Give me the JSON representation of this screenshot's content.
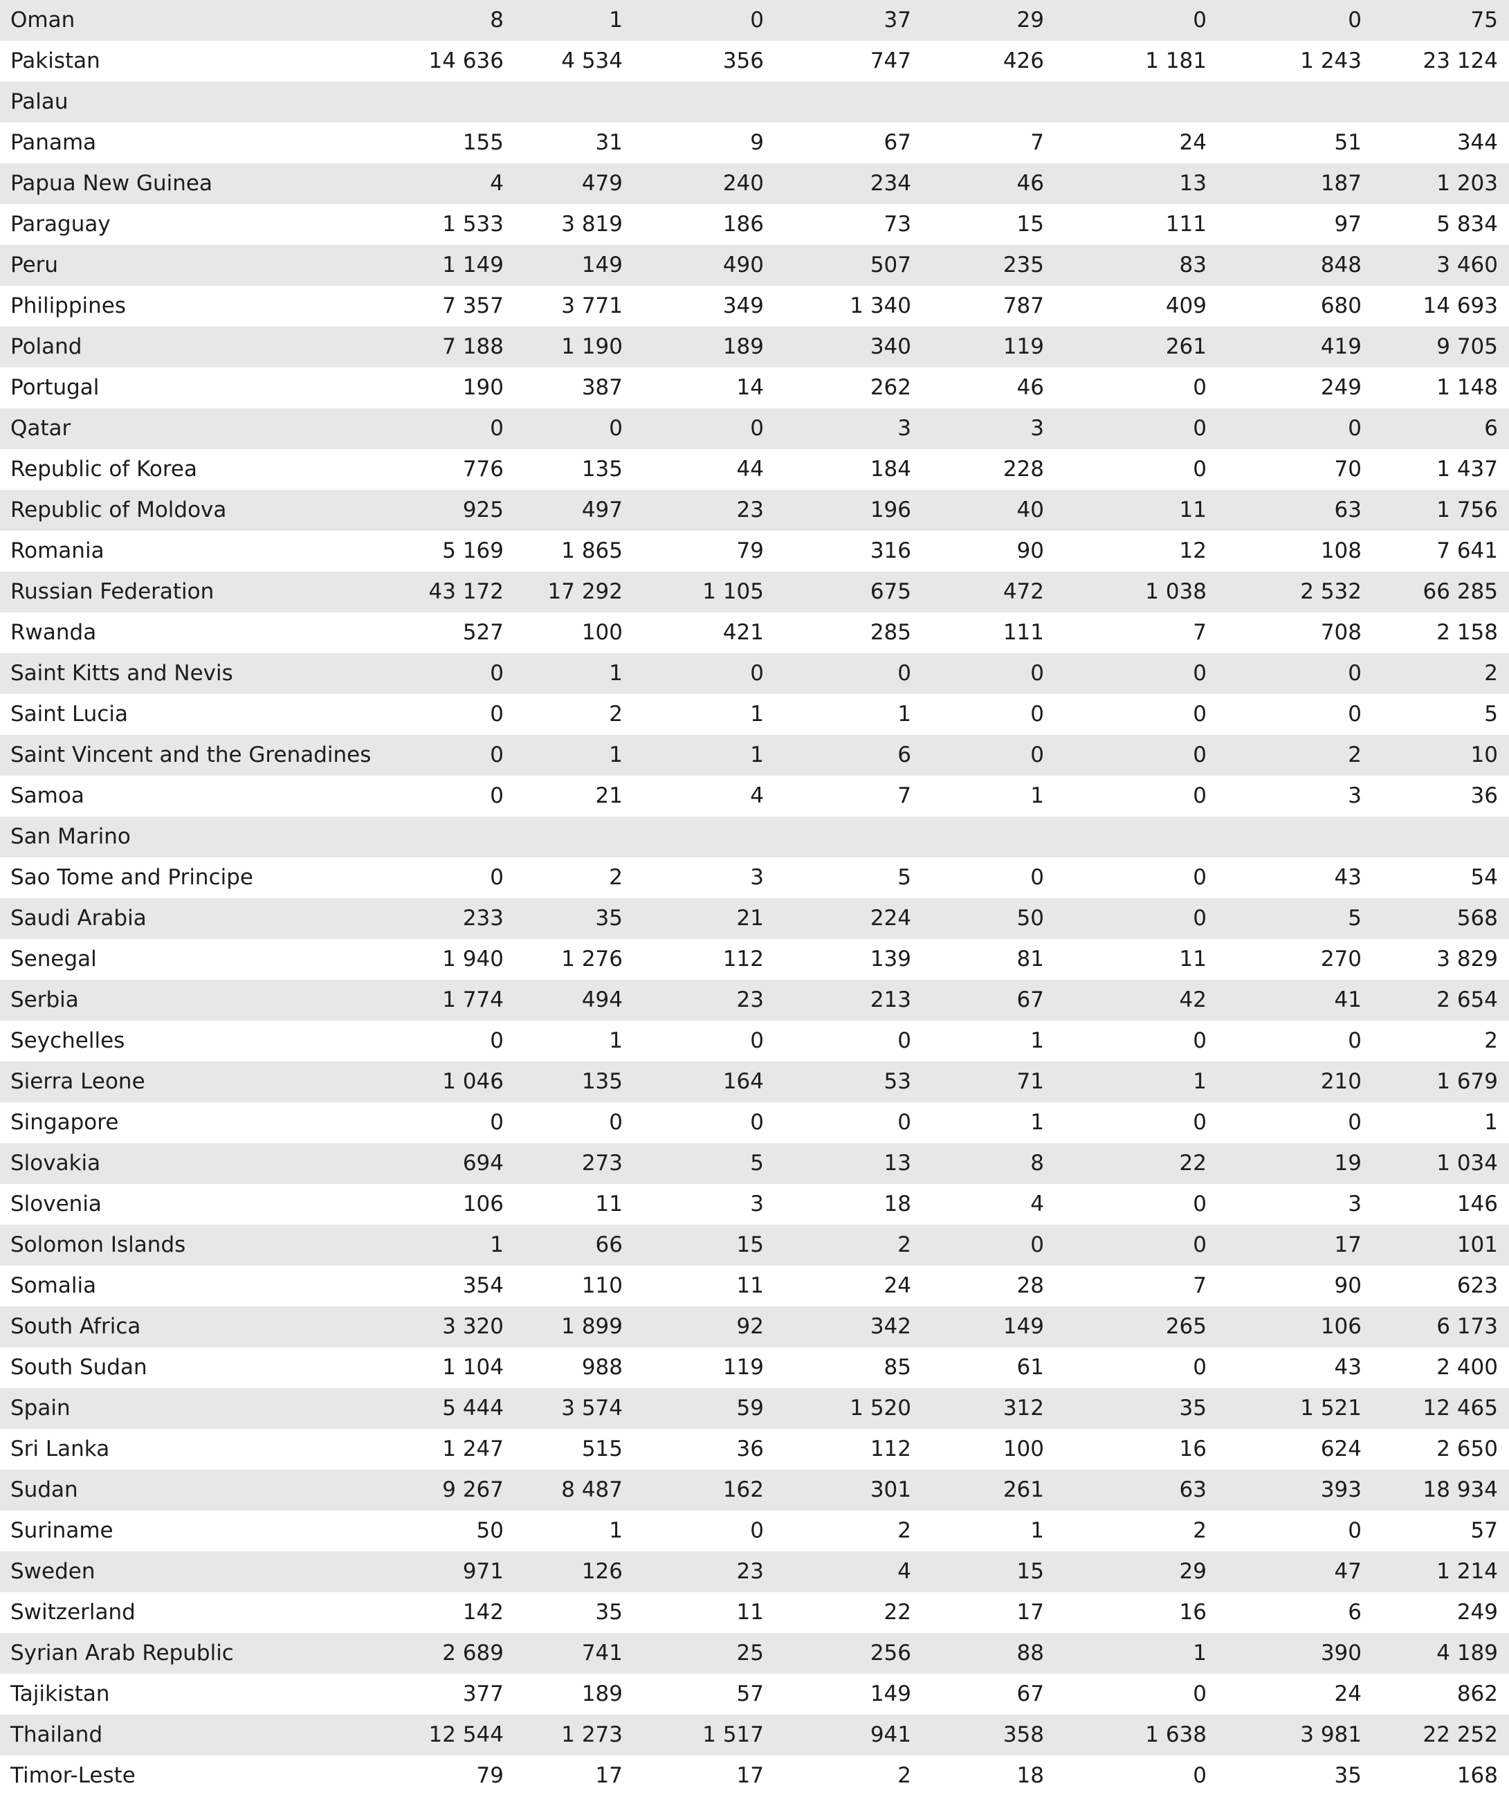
{
  "table": {
    "rows": [
      [
        "Oman",
        "8",
        "1",
        "0",
        "37",
        "29",
        "0",
        "0",
        "75"
      ],
      [
        "Pakistan",
        "14 636",
        "4 534",
        "356",
        "747",
        "426",
        "1 181",
        "1 243",
        "23 124"
      ],
      [
        "Palau"
      ],
      [
        "Panama",
        "155",
        "31",
        "9",
        "67",
        "7",
        "24",
        "51",
        "344"
      ],
      [
        "Papua New Guinea",
        "4",
        "479",
        "240",
        "234",
        "46",
        "13",
        "187",
        "1 203"
      ],
      [
        "Paraguay",
        "1 533",
        "3 819",
        "186",
        "73",
        "15",
        "111",
        "97",
        "5 834"
      ],
      [
        "Peru",
        "1 149",
        "149",
        "490",
        "507",
        "235",
        "83",
        "848",
        "3 460"
      ],
      [
        "Philippines",
        "7 357",
        "3 771",
        "349",
        "1 340",
        "787",
        "409",
        "680",
        "14 693"
      ],
      [
        "Poland",
        "7 188",
        "1 190",
        "189",
        "340",
        "119",
        "261",
        "419",
        "9 705"
      ],
      [
        "Portugal",
        "190",
        "387",
        "14",
        "262",
        "46",
        "0",
        "249",
        "1 148"
      ],
      [
        "Qatar",
        "0",
        "0",
        "0",
        "3",
        "3",
        "0",
        "0",
        "6"
      ],
      [
        "Republic of Korea",
        "776",
        "135",
        "44",
        "184",
        "228",
        "0",
        "70",
        "1 437"
      ],
      [
        "Republic of Moldova",
        "925",
        "497",
        "23",
        "196",
        "40",
        "11",
        "63",
        "1 756"
      ],
      [
        "Romania",
        "5 169",
        "1 865",
        "79",
        "316",
        "90",
        "12",
        "108",
        "7 641"
      ],
      [
        "Russian Federation",
        "43 172",
        "17 292",
        "1 105",
        "675",
        "472",
        "1 038",
        "2 532",
        "66 285"
      ],
      [
        "Rwanda",
        "527",
        "100",
        "421",
        "285",
        "111",
        "7",
        "708",
        "2 158"
      ],
      [
        "Saint Kitts and Nevis",
        "0",
        "1",
        "0",
        "0",
        "0",
        "0",
        "0",
        "2"
      ],
      [
        "Saint Lucia",
        "0",
        "2",
        "1",
        "1",
        "0",
        "0",
        "0",
        "5"
      ],
      [
        "Saint Vincent and the Grenadines",
        "0",
        "1",
        "1",
        "6",
        "0",
        "0",
        "2",
        "10"
      ],
      [
        "Samoa",
        "0",
        "21",
        "4",
        "7",
        "1",
        "0",
        "3",
        "36"
      ],
      [
        "San Marino"
      ],
      [
        "Sao Tome and Principe",
        "0",
        "2",
        "3",
        "5",
        "0",
        "0",
        "43",
        "54"
      ],
      [
        "Saudi Arabia",
        "233",
        "35",
        "21",
        "224",
        "50",
        "0",
        "5",
        "568"
      ],
      [
        "Senegal",
        "1 940",
        "1 276",
        "112",
        "139",
        "81",
        "11",
        "270",
        "3 829"
      ],
      [
        "Serbia",
        "1 774",
        "494",
        "23",
        "213",
        "67",
        "42",
        "41",
        "2 654"
      ],
      [
        "Seychelles",
        "0",
        "1",
        "0",
        "0",
        "1",
        "0",
        "0",
        "2"
      ],
      [
        "Sierra Leone",
        "1 046",
        "135",
        "164",
        "53",
        "71",
        "1",
        "210",
        "1 679"
      ],
      [
        "Singapore",
        "0",
        "0",
        "0",
        "0",
        "1",
        "0",
        "0",
        "1"
      ],
      [
        "Slovakia",
        "694",
        "273",
        "5",
        "13",
        "8",
        "22",
        "19",
        "1 034"
      ],
      [
        "Slovenia",
        "106",
        "11",
        "3",
        "18",
        "4",
        "0",
        "3",
        "146"
      ],
      [
        "Solomon Islands",
        "1",
        "66",
        "15",
        "2",
        "0",
        "0",
        "17",
        "101"
      ],
      [
        "Somalia",
        "354",
        "110",
        "11",
        "24",
        "28",
        "7",
        "90",
        "623"
      ],
      [
        "South Africa",
        "3 320",
        "1 899",
        "92",
        "342",
        "149",
        "265",
        "106",
        "6 173"
      ],
      [
        "South Sudan",
        "1 104",
        "988",
        "119",
        "85",
        "61",
        "0",
        "43",
        "2 400"
      ],
      [
        "Spain",
        "5 444",
        "3 574",
        "59",
        "1 520",
        "312",
        "35",
        "1 521",
        "12 465"
      ],
      [
        "Sri Lanka",
        "1 247",
        "515",
        "36",
        "112",
        "100",
        "16",
        "624",
        "2 650"
      ],
      [
        "Sudan",
        "9 267",
        "8 487",
        "162",
        "301",
        "261",
        "63",
        "393",
        "18 934"
      ],
      [
        "Suriname",
        "50",
        "1",
        "0",
        "2",
        "1",
        "2",
        "0",
        "57"
      ],
      [
        "Sweden",
        "971",
        "126",
        "23",
        "4",
        "15",
        "29",
        "47",
        "1 214"
      ],
      [
        "Switzerland",
        "142",
        "35",
        "11",
        "22",
        "17",
        "16",
        "6",
        "249"
      ],
      [
        "Syrian Arab Republic",
        "2 689",
        "741",
        "25",
        "256",
        "88",
        "1",
        "390",
        "4 189"
      ],
      [
        "Tajikistan",
        "377",
        "189",
        "57",
        "149",
        "67",
        "0",
        "24",
        "862"
      ],
      [
        "Thailand",
        "12 544",
        "1 273",
        "1 517",
        "941",
        "358",
        "1 638",
        "3 981",
        "22 252"
      ],
      [
        "Timor-Leste",
        "79",
        "17",
        "17",
        "2",
        "18",
        "0",
        "35",
        "168"
      ]
    ]
  }
}
